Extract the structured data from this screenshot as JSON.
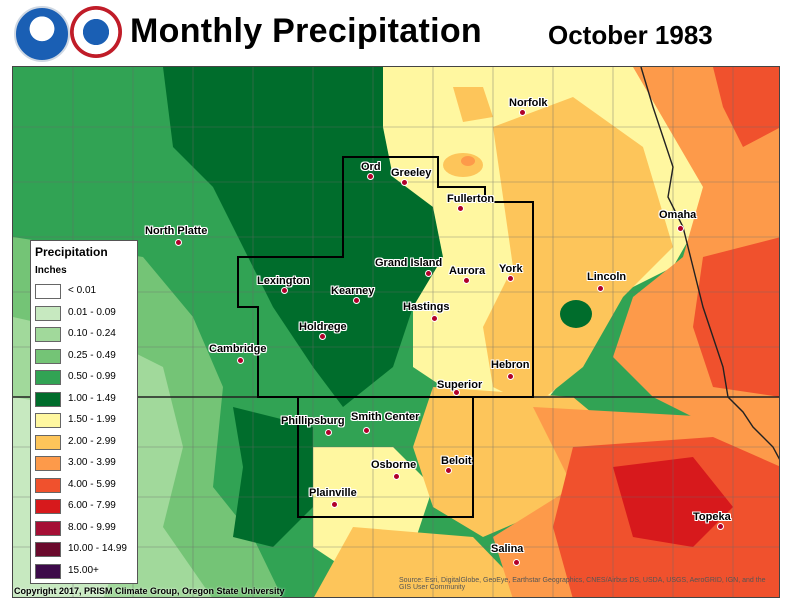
{
  "header": {
    "title": "Monthly Precipitation",
    "subtitle": "October 1983",
    "logos": [
      "noaa-logo",
      "national-weather-service-logo"
    ]
  },
  "legend": {
    "title": "Precipitation",
    "units": "Inches",
    "entries": [
      {
        "label": "< 0.01",
        "color": "#ffffff"
      },
      {
        "label": "0.01 - 0.09",
        "color": "#c7e9c0"
      },
      {
        "label": "0.10 - 0.24",
        "color": "#a1d99b"
      },
      {
        "label": "0.25 - 0.49",
        "color": "#74c476"
      },
      {
        "label": "0.50 - 0.99",
        "color": "#31a354"
      },
      {
        "label": "1.00 - 1.49",
        "color": "#006d2c"
      },
      {
        "label": "1.50 - 1.99",
        "color": "#fff7a0"
      },
      {
        "label": "2.00 - 2.99",
        "color": "#fdc55a"
      },
      {
        "label": "3.00 - 3.99",
        "color": "#fd9a4a"
      },
      {
        "label": "4.00 - 5.99",
        "color": "#f0512d"
      },
      {
        "label": "6.00 - 7.99",
        "color": "#d7191c"
      },
      {
        "label": "8.00 - 9.99",
        "color": "#a50f35"
      },
      {
        "label": "10.00 - 14.99",
        "color": "#6b0a2d"
      },
      {
        "label": "15.00+",
        "color": "#3d0a4a"
      }
    ]
  },
  "cities": [
    "Norfolk",
    "Ord",
    "Greeley",
    "Fullerton",
    "North Platte",
    "Omaha",
    "Grand Island",
    "Aurora",
    "York",
    "Lincoln",
    "Lexington",
    "Kearney",
    "Hastings",
    "Holdrege",
    "Cambridge",
    "Hebron",
    "Superior",
    "Phillipsburg",
    "Smith Center",
    "Beloit",
    "Osborne",
    "Plainville",
    "Topeka",
    "Salina"
  ],
  "footer": {
    "copyright": "Copyright 2017, PRISM Climate Group, Oregon State University",
    "credits": "Source: Esri, DigitalGlobe, GeoEye, Earthstar Geographics, CNES/Airbus DS, USDA, USGS, AeroGRID, IGN, and the GIS User Community"
  }
}
